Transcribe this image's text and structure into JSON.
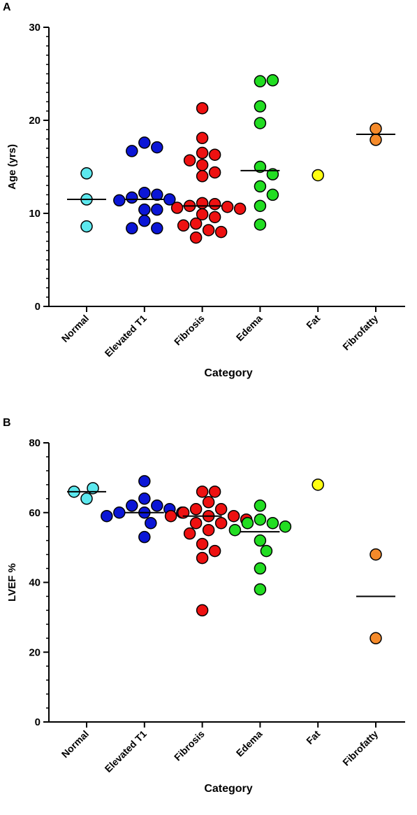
{
  "chart_data": [
    {
      "type": "dot",
      "panel_label": "A",
      "y_label": "Age (yrs)",
      "x_label": "Category",
      "ylim": [
        0,
        30
      ],
      "yticks": [
        0,
        10,
        20,
        30
      ],
      "series": [
        {
          "name": "Normal",
          "color": "#5ce8ee",
          "values": [
            14.3,
            11.5,
            8.6
          ],
          "median": 11.5
        },
        {
          "name": "Elevated T1",
          "color": "#0b16d6",
          "values": [
            17.6,
            17.1,
            16.7,
            12.2,
            12.0,
            11.7,
            11.5,
            11.4,
            10.4,
            10.4,
            9.2,
            8.4,
            8.4
          ],
          "median": 11.5
        },
        {
          "name": "Fibrosis",
          "color": "#ee1111",
          "values": [
            21.3,
            18.1,
            16.5,
            16.3,
            15.7,
            15.2,
            14.4,
            14.0,
            11.1,
            11.0,
            10.8,
            10.7,
            10.6,
            10.5,
            9.9,
            9.6,
            8.9,
            8.7,
            8.2,
            8.0,
            7.4
          ],
          "median": 10.8
        },
        {
          "name": "Edema",
          "color": "#22dd22",
          "values": [
            24.2,
            24.3,
            21.5,
            19.7,
            15.0,
            14.2,
            12.9,
            12.0,
            10.8,
            8.8
          ],
          "median": 14.6
        },
        {
          "name": "Fat",
          "color": "#ffff11",
          "values": [
            14.1
          ],
          "median": null
        },
        {
          "name": "Fibrofatty",
          "color": "#f58a2a",
          "values": [
            19.1,
            17.9
          ],
          "median": 18.5
        }
      ]
    },
    {
      "type": "dot",
      "panel_label": "B",
      "y_label": "LVEF %",
      "x_label": "Category",
      "ylim": [
        0,
        80
      ],
      "yticks": [
        0,
        20,
        40,
        60,
        80
      ],
      "series": [
        {
          "name": "Normal",
          "color": "#5ce8ee",
          "values": [
            64,
            67,
            66
          ],
          "median": 66
        },
        {
          "name": "Elevated T1",
          "color": "#0b16d6",
          "values": [
            69,
            64,
            62,
            62,
            61,
            60,
            60,
            60,
            59,
            57,
            53
          ],
          "median": 60
        },
        {
          "name": "Fibrosis",
          "color": "#ee1111",
          "values": [
            66,
            66,
            63,
            61,
            61,
            60,
            59,
            59,
            59,
            58,
            57,
            57,
            55,
            54,
            51,
            49,
            47,
            32
          ],
          "median": 59
        },
        {
          "name": "Edema",
          "color": "#22dd22",
          "values": [
            62,
            58,
            57,
            57,
            56,
            55,
            52,
            49,
            44,
            38
          ],
          "median": 54.5
        },
        {
          "name": "Fat",
          "color": "#ffff11",
          "values": [
            68
          ],
          "median": null
        },
        {
          "name": "Fibrofatty",
          "color": "#f58a2a",
          "values": [
            48,
            24
          ],
          "median": 36
        }
      ]
    }
  ]
}
